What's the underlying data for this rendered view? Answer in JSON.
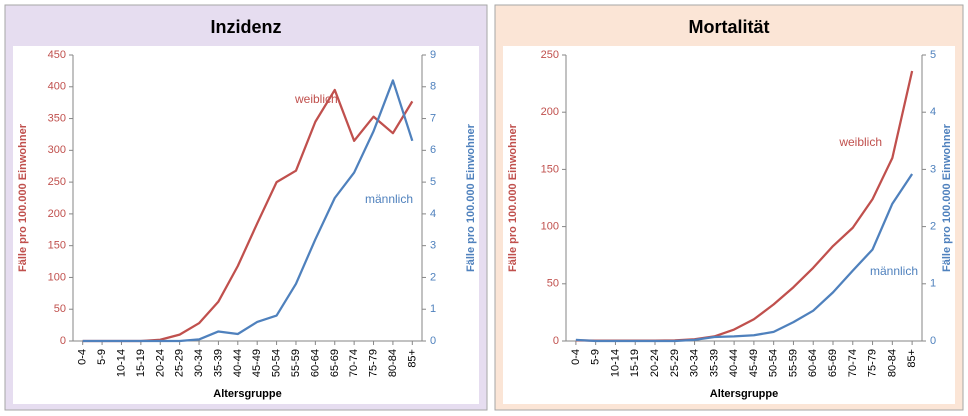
{
  "chart_data": [
    {
      "type": "line",
      "title": "Inzidenz",
      "categories": [
        "0-4",
        "5-9",
        "10-14",
        "15-19",
        "20-24",
        "25-29",
        "30-34",
        "35-39",
        "40-44",
        "45-49",
        "50-54",
        "55-59",
        "60-64",
        "65-69",
        "70-74",
        "75-79",
        "80-84",
        "85+"
      ],
      "series": [
        {
          "name": "weiblich",
          "color": "#c0504d",
          "values": [
            0,
            0,
            0,
            0,
            2,
            10,
            28,
            62,
            118,
            185,
            250,
            268,
            345,
            395,
            315,
            353,
            327,
            377
          ]
        },
        {
          "name": "männlich",
          "color": "#4f81bd",
          "axis": "y2",
          "values": [
            0,
            0,
            0,
            0,
            0,
            0,
            0.05,
            0.3,
            0.22,
            0.6,
            0.8,
            1.8,
            3.2,
            4.5,
            5.3,
            6.6,
            8.2,
            6.3
          ]
        }
      ],
      "x_label": "Altersgruppe",
      "y_label": "Fälle pro 100.000 Einwohner",
      "y2_label": "Fälle pro 100.000 Einwohner",
      "ylim": [
        0,
        450
      ],
      "yticks": [
        0,
        50,
        100,
        150,
        200,
        250,
        300,
        350,
        400,
        450
      ],
      "y2lim": [
        0,
        9
      ],
      "y2ticks": [
        0,
        1,
        2,
        3,
        4,
        5,
        6,
        7,
        8,
        9
      ],
      "background": "#e6ddf0"
    },
    {
      "type": "line",
      "title": "Mortalität",
      "categories": [
        "0-4",
        "5-9",
        "10-14",
        "15-19",
        "20-24",
        "25-29",
        "30-34",
        "35-39",
        "40-44",
        "45-49",
        "50-54",
        "55-59",
        "60-64",
        "65-69",
        "70-74",
        "75-79",
        "80-84",
        "85+"
      ],
      "series": [
        {
          "name": "weiblich",
          "color": "#c0504d",
          "values": [
            0.5,
            0.3,
            0.3,
            0.3,
            0.3,
            0.5,
            1.5,
            4,
            10,
            19,
            32,
            47,
            64,
            83,
            99,
            124,
            160,
            236
          ]
        },
        {
          "name": "männlich",
          "color": "#4f81bd",
          "axis": "y2",
          "values": [
            0.02,
            0,
            0,
            0,
            0,
            0,
            0.02,
            0.07,
            0.08,
            0.1,
            0.16,
            0.33,
            0.53,
            0.85,
            1.23,
            1.6,
            2.4,
            2.92
          ]
        }
      ],
      "x_label": "Altersgruppe",
      "y_label": "Fälle pro 100.000 Einwohner",
      "y2_label": "Fälle pro 100.000 Einwohner",
      "ylim": [
        0,
        250
      ],
      "yticks": [
        0,
        50,
        100,
        150,
        200,
        250
      ],
      "y2lim": [
        0,
        5
      ],
      "y2ticks": [
        0,
        1,
        2,
        3,
        4,
        5
      ],
      "background": "#fbe5d6"
    }
  ]
}
